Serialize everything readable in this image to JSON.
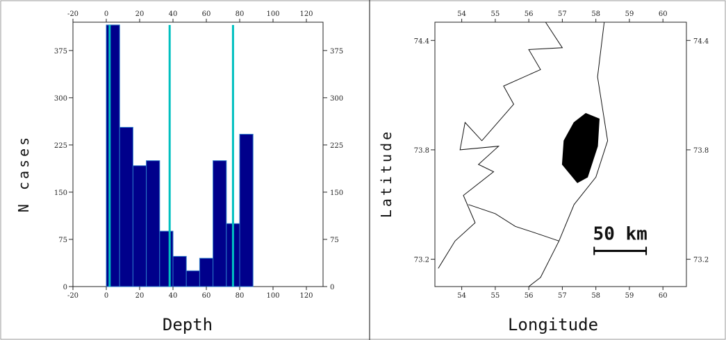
{
  "chart_data": [
    {
      "type": "bar",
      "title": "",
      "xlabel": "Depth",
      "ylabel": "N cases",
      "xlim": [
        -20,
        130
      ],
      "ylim": [
        0,
        420
      ],
      "xticks": [
        "-20",
        "0",
        "20",
        "40",
        "60",
        "80",
        "100",
        "120"
      ],
      "yticks": [
        "0",
        "75",
        "150",
        "225",
        "300",
        "375"
      ],
      "bar_color": "#00008b",
      "vline_color": "#00c0c0",
      "bins": [
        {
          "x0": 0,
          "x1": 8,
          "value": 440
        },
        {
          "x0": 8,
          "x1": 16,
          "value": 253
        },
        {
          "x0": 16,
          "x1": 24,
          "value": 192
        },
        {
          "x0": 24,
          "x1": 32,
          "value": 200
        },
        {
          "x0": 32,
          "x1": 40,
          "value": 88
        },
        {
          "x0": 40,
          "x1": 48,
          "value": 48
        },
        {
          "x0": 48,
          "x1": 56,
          "value": 25
        },
        {
          "x0": 56,
          "x1": 64,
          "value": 45
        },
        {
          "x0": 64,
          "x1": 72,
          "value": 200
        },
        {
          "x0": 72,
          "x1": 80,
          "value": 100
        },
        {
          "x0": 80,
          "x1": 88,
          "value": 242
        }
      ],
      "vlines": [
        2,
        38,
        76
      ]
    },
    {
      "type": "map",
      "title": "",
      "xlabel": "Longitude",
      "ylabel": "Latitude",
      "xlim": [
        53.2,
        60.7
      ],
      "ylim": [
        73.05,
        74.5
      ],
      "xticks": [
        "54",
        "55",
        "56",
        "57",
        "58",
        "59",
        "60"
      ],
      "yticks": [
        "73.2",
        "73.8",
        "74.4"
      ],
      "scale_label": "50 km",
      "scale_bar": {
        "from_lon": 57.95,
        "to_lon": 59.5,
        "lat": 73.2
      },
      "coastline": [
        [
          56.5,
          74.5
        ],
        [
          57.0,
          74.36
        ],
        [
          56.0,
          74.35
        ],
        [
          56.35,
          74.24
        ],
        [
          55.25,
          74.15
        ],
        [
          55.55,
          74.05
        ],
        [
          54.6,
          73.85
        ],
        [
          54.1,
          73.95
        ],
        [
          53.95,
          73.8
        ],
        [
          55.1,
          73.82
        ],
        [
          54.5,
          73.72
        ],
        [
          54.95,
          73.68
        ],
        [
          54.05,
          73.55
        ],
        [
          54.4,
          73.4
        ],
        [
          53.8,
          73.3
        ],
        [
          53.3,
          73.15
        ]
      ],
      "coastline2": [
        [
          58.25,
          74.5
        ],
        [
          58.05,
          74.2
        ],
        [
          58.35,
          73.85
        ],
        [
          58.0,
          73.65
        ],
        [
          57.35,
          73.5
        ],
        [
          56.9,
          73.3
        ],
        [
          56.35,
          73.1
        ],
        [
          56.0,
          73.05
        ]
      ],
      "coastline3": [
        [
          54.2,
          73.5
        ],
        [
          55.0,
          73.45
        ],
        [
          55.6,
          73.38
        ],
        [
          56.1,
          73.35
        ],
        [
          56.9,
          73.3
        ]
      ],
      "blob": [
        [
          57.35,
          73.95
        ],
        [
          57.7,
          74.0
        ],
        [
          58.1,
          73.97
        ],
        [
          58.05,
          73.82
        ],
        [
          57.75,
          73.65
        ],
        [
          57.45,
          73.62
        ],
        [
          57.0,
          73.72
        ],
        [
          57.05,
          73.85
        ]
      ]
    }
  ]
}
